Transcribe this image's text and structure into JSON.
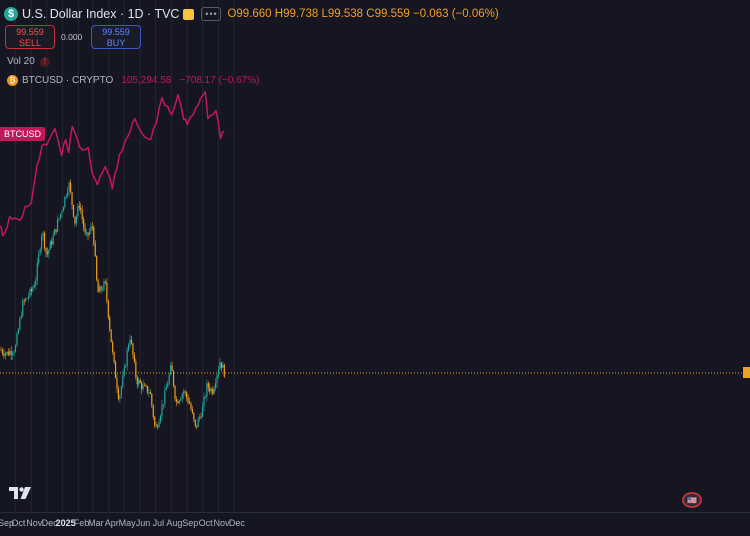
{
  "header": {
    "title": "U.S. Dollar Index · 1D · TVC",
    "ohlc": {
      "o_label": "O",
      "o": "99.660",
      "h_label": "H",
      "h": "99.738",
      "l_label": "L",
      "l": "99.538",
      "c_label": "C",
      "c": "99.559",
      "change": "−0.063 (−0.06%)"
    }
  },
  "trade": {
    "sell_price": "99.559",
    "sell_label": "SELL",
    "spread": "0.000",
    "buy_price": "99.559",
    "buy_label": "BUY"
  },
  "indicator": {
    "vol_label": "Vol 20"
  },
  "compare": {
    "name": "BTCUSD · CRYPTO",
    "value": "105,294.58",
    "change": "−708.17 (−0.67%)",
    "tag": "BTCUSD"
  },
  "colors": {
    "background": "#151621",
    "up": "#26a69a",
    "down": "#f0a020",
    "btc_line": "#c2185b",
    "last_price": "#f0a020"
  },
  "chart_data": {
    "type": "candlestick+line",
    "x_months": [
      "Sep",
      "Oct",
      "Nov",
      "Dec",
      "2025",
      "Feb",
      "Mar",
      "Apr",
      "May",
      "Jun",
      "Jul",
      "Aug",
      "Sep",
      "Oct",
      "Nov",
      "Dec"
    ],
    "series": [
      {
        "name": "U.S. Dollar Index",
        "style": "candles",
        "close_path": [
          [
            "2024-09-01",
            100.8
          ],
          [
            "2024-09-15",
            100.6
          ],
          [
            "2024-10-01",
            100.9
          ],
          [
            "2024-10-15",
            103.2
          ],
          [
            "2024-11-01",
            103.9
          ],
          [
            "2024-11-10",
            104.6
          ],
          [
            "2024-11-22",
            107.2
          ],
          [
            "2024-12-01",
            105.8
          ],
          [
            "2024-12-15",
            106.9
          ],
          [
            "2025-01-01",
            108.4
          ],
          [
            "2025-01-13",
            109.7
          ],
          [
            "2025-01-25",
            107.6
          ],
          [
            "2025-02-03",
            108.6
          ],
          [
            "2025-02-15",
            106.7
          ],
          [
            "2025-03-01",
            107.4
          ],
          [
            "2025-03-10",
            103.8
          ],
          [
            "2025-03-25",
            104.3
          ],
          [
            "2025-04-10",
            100.2
          ],
          [
            "2025-04-21",
            98.2
          ],
          [
            "2025-05-01",
            99.6
          ],
          [
            "2025-05-12",
            101.6
          ],
          [
            "2025-05-25",
            99.2
          ],
          [
            "2025-06-10",
            98.7
          ],
          [
            "2025-06-20",
            98.6
          ],
          [
            "2025-07-01",
            96.5
          ],
          [
            "2025-07-15",
            97.9
          ],
          [
            "2025-08-01",
            99.9
          ],
          [
            "2025-08-10",
            98.0
          ],
          [
            "2025-08-25",
            98.6
          ],
          [
            "2025-09-05",
            98.0
          ],
          [
            "2025-09-17",
            96.6
          ],
          [
            "2025-10-01",
            97.7
          ],
          [
            "2025-10-10",
            98.9
          ],
          [
            "2025-10-20",
            98.6
          ],
          [
            "2025-11-04",
            100.2
          ],
          [
            "2025-11-13",
            99.56
          ]
        ],
        "last": 99.559
      },
      {
        "name": "BTCUSD",
        "style": "line",
        "scale": "overlay",
        "path": [
          [
            "2024-09-01",
            58000
          ],
          [
            "2024-09-06",
            53000
          ],
          [
            "2024-09-20",
            62500
          ],
          [
            "2024-10-10",
            60500
          ],
          [
            "2024-10-20",
            67500
          ],
          [
            "2024-11-01",
            69500
          ],
          [
            "2024-11-12",
            88000
          ],
          [
            "2024-11-22",
            98000
          ],
          [
            "2024-12-05",
            100500
          ],
          [
            "2024-12-17",
            106500
          ],
          [
            "2024-12-30",
            93000
          ],
          [
            "2025-01-07",
            101000
          ],
          [
            "2025-01-13",
            94500
          ],
          [
            "2025-01-20",
            107500
          ],
          [
            "2025-02-03",
            97500
          ],
          [
            "2025-02-20",
            97000
          ],
          [
            "2025-02-28",
            84000
          ],
          [
            "2025-03-10",
            78500
          ],
          [
            "2025-03-25",
            87500
          ],
          [
            "2025-04-08",
            76500
          ],
          [
            "2025-04-22",
            93500
          ],
          [
            "2025-05-08",
            102500
          ],
          [
            "2025-05-22",
            111500
          ],
          [
            "2025-06-05",
            104000
          ],
          [
            "2025-06-22",
            101000
          ],
          [
            "2025-07-03",
            109500
          ],
          [
            "2025-07-14",
            122000
          ],
          [
            "2025-07-25",
            117500
          ],
          [
            "2025-08-02",
            113500
          ],
          [
            "2025-08-14",
            123500
          ],
          [
            "2025-08-25",
            111000
          ],
          [
            "2025-09-01",
            108500
          ],
          [
            "2025-09-18",
            117000
          ],
          [
            "2025-10-06",
            125000
          ],
          [
            "2025-10-11",
            111500
          ],
          [
            "2025-10-27",
            115500
          ],
          [
            "2025-11-05",
            101500
          ],
          [
            "2025-11-11",
            105300
          ]
        ],
        "last": 105294.58
      }
    ]
  }
}
